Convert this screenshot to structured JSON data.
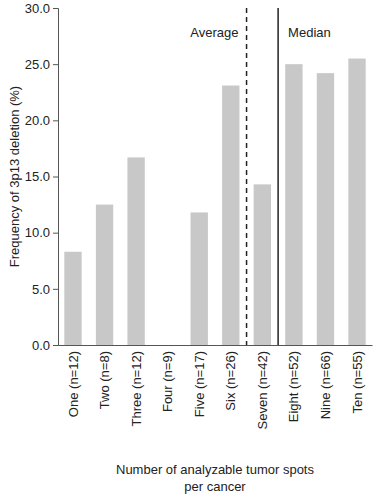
{
  "chart_data": {
    "type": "bar",
    "categories": [
      "One (n=12)",
      "Two (n=8)",
      "Three (n=12)",
      "Four (n=9)",
      "Five (n=17)",
      "Six (n=26)",
      "Seven (n=42)",
      "Eight (n=52)",
      "Nine (n=66)",
      "Ten (n=55)"
    ],
    "values": [
      8.3,
      12.5,
      16.7,
      0,
      11.8,
      23.1,
      14.3,
      25.0,
      24.2,
      25.5
    ],
    "color": "#c8c8c8",
    "ylim": [
      0,
      30
    ],
    "yticks": [
      {
        "value": 0,
        "label": "0.0"
      },
      {
        "value": 5,
        "label": "5.0"
      },
      {
        "value": 10,
        "label": "10.0"
      },
      {
        "value": 15,
        "label": "15.0"
      },
      {
        "value": 20,
        "label": "20.0"
      },
      {
        "value": 25,
        "label": "25.0"
      },
      {
        "value": 30,
        "label": "30.0"
      }
    ],
    "y_label": "Frequency of 3p13 deletion (%)",
    "x_label": "Number of analyzable tumor spots\nper cancer",
    "annotations": [
      {
        "text": "Average",
        "x": 5.5,
        "y": 27.8,
        "line_style": "dashed"
      },
      {
        "text": "Median",
        "x": 6.5,
        "y": 27.8,
        "line_style": "solid"
      }
    ]
  }
}
